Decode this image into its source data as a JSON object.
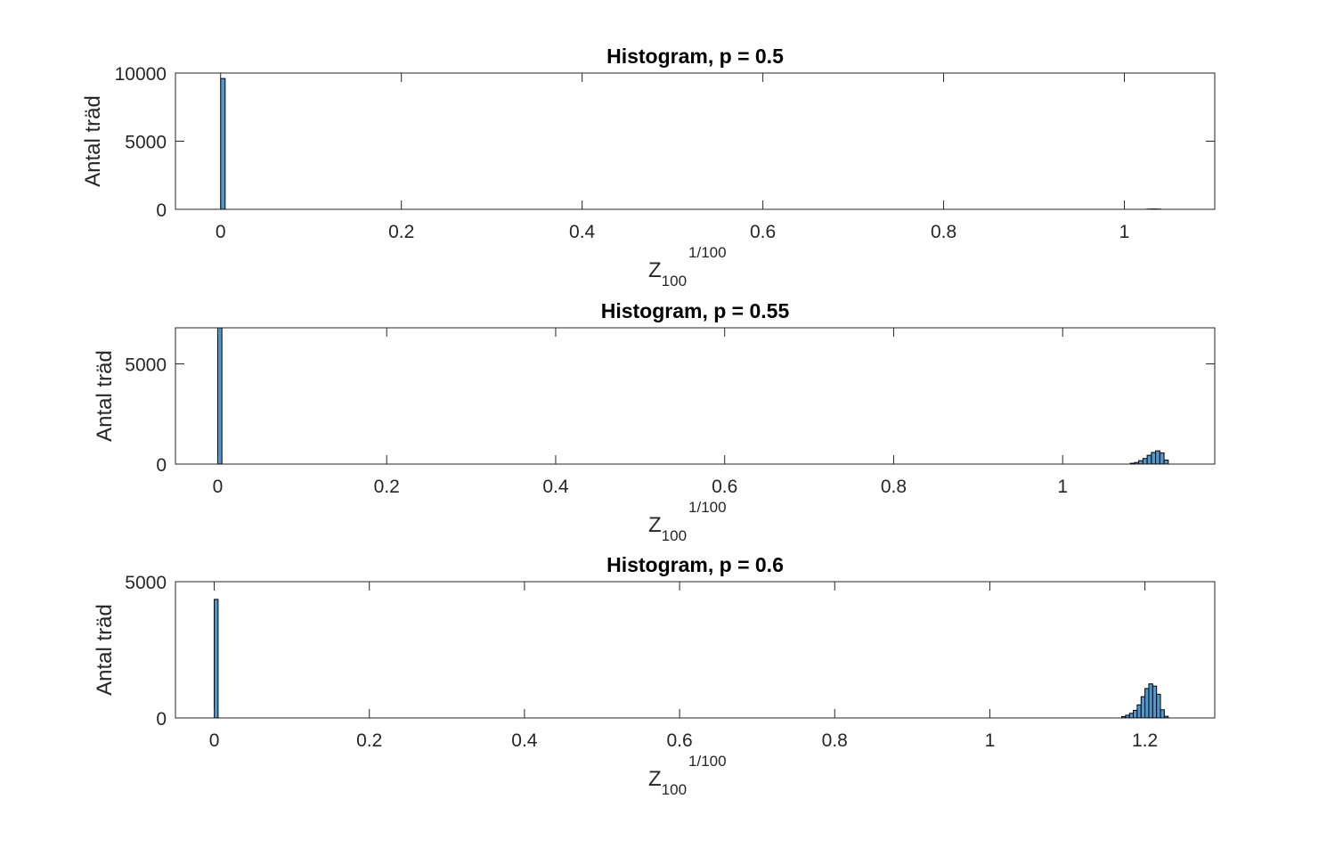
{
  "chart_data": [
    {
      "type": "bar",
      "title": "Histogram, p = 0.5",
      "xlabel": {
        "base": "Z",
        "subscript": "100",
        "superscript": "1/100"
      },
      "ylabel": "Antal träd",
      "xlim": [
        -0.05,
        1.1
      ],
      "ylim": [
        0,
        10000
      ],
      "xticks": [
        0,
        0.2,
        0.4,
        0.6,
        0.8,
        1
      ],
      "xtick_labels": [
        "0",
        "0.2",
        "0.4",
        "0.6",
        "0.8",
        "1"
      ],
      "yticks": [
        0,
        5000,
        10000
      ],
      "ytick_labels": [
        "0",
        "5000",
        "10000"
      ],
      "bin_width": 0.005,
      "bins": [
        {
          "x": 0.0025,
          "count": 9600
        },
        {
          "x": 1.0275,
          "count": 15
        },
        {
          "x": 1.0325,
          "count": 25
        },
        {
          "x": 1.0375,
          "count": 15
        }
      ]
    },
    {
      "type": "bar",
      "title": "Histogram, p = 0.55",
      "xlabel": {
        "base": "Z",
        "subscript": "100",
        "superscript": "1/100"
      },
      "ylabel": "Antal träd",
      "xlim": [
        -0.05,
        1.18
      ],
      "ylim": [
        0,
        6800
      ],
      "xticks": [
        0,
        0.2,
        0.4,
        0.6,
        0.8,
        1
      ],
      "xtick_labels": [
        "0",
        "0.2",
        "0.4",
        "0.6",
        "0.8",
        "1"
      ],
      "yticks": [
        0,
        5000
      ],
      "ytick_labels": [
        "0",
        "5000"
      ],
      "bin_width": 0.005,
      "bins": [
        {
          "x": 0.0025,
          "count": 6800
        },
        {
          "x": 1.0825,
          "count": 40
        },
        {
          "x": 1.0875,
          "count": 80
        },
        {
          "x": 1.0925,
          "count": 170
        },
        {
          "x": 1.0975,
          "count": 280
        },
        {
          "x": 1.1025,
          "count": 440
        },
        {
          "x": 1.1075,
          "count": 580
        },
        {
          "x": 1.1125,
          "count": 660
        },
        {
          "x": 1.1175,
          "count": 560
        },
        {
          "x": 1.1225,
          "count": 200
        }
      ]
    },
    {
      "type": "bar",
      "title": "Histogram, p = 0.6",
      "xlabel": {
        "base": "Z",
        "subscript": "100",
        "superscript": "1/100"
      },
      "ylabel": "Antal träd",
      "xlim": [
        -0.05,
        1.29
      ],
      "ylim": [
        0,
        5000
      ],
      "xticks": [
        0,
        0.2,
        0.4,
        0.6,
        0.8,
        1,
        1.2
      ],
      "xtick_labels": [
        "0",
        "0.2",
        "0.4",
        "0.6",
        "0.8",
        "1",
        "1.2"
      ],
      "yticks": [
        0,
        5000
      ],
      "ytick_labels": [
        "0",
        "5000"
      ],
      "bin_width": 0.005,
      "bins": [
        {
          "x": 0.0025,
          "count": 4350
        },
        {
          "x": 1.1725,
          "count": 50
        },
        {
          "x": 1.1775,
          "count": 100
        },
        {
          "x": 1.1825,
          "count": 170
        },
        {
          "x": 1.1875,
          "count": 280
        },
        {
          "x": 1.1925,
          "count": 480
        },
        {
          "x": 1.1975,
          "count": 780
        },
        {
          "x": 1.2025,
          "count": 1080
        },
        {
          "x": 1.2075,
          "count": 1250
        },
        {
          "x": 1.2125,
          "count": 1170
        },
        {
          "x": 1.2175,
          "count": 870
        },
        {
          "x": 1.2225,
          "count": 300
        },
        {
          "x": 1.2275,
          "count": 60
        }
      ]
    }
  ]
}
